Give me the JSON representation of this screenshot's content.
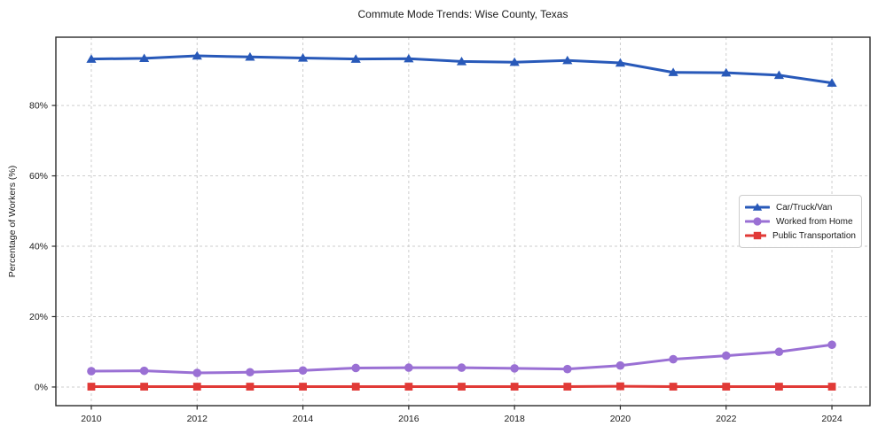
{
  "chart_data": {
    "type": "line",
    "title": "Commute Mode Trends: Wise County, Texas",
    "xlabel": "",
    "ylabel": "Percentage of Workers (%)",
    "x": [
      2010,
      2011,
      2012,
      2013,
      2014,
      2015,
      2016,
      2017,
      2018,
      2019,
      2020,
      2021,
      2022,
      2023,
      2024
    ],
    "series": [
      {
        "name": "Car/Truck/Van",
        "color": "#2859b9",
        "marker": "triangle",
        "values": [
          93.2,
          93.4,
          94.1,
          93.8,
          93.5,
          93.2,
          93.3,
          92.5,
          92.3,
          92.8,
          92.1,
          89.4,
          89.3,
          88.6,
          86.4
        ]
      },
      {
        "name": "Worked from Home",
        "color": "#9a70d4",
        "marker": "circle",
        "values": [
          4.5,
          4.6,
          4.0,
          4.2,
          4.7,
          5.4,
          5.5,
          5.5,
          5.3,
          5.1,
          6.1,
          7.9,
          8.9,
          10.0,
          12.0
        ]
      },
      {
        "name": "Public Transportation",
        "color": "#e13a37",
        "marker": "square",
        "values": [
          0.1,
          0.1,
          0.1,
          0.1,
          0.1,
          0.1,
          0.1,
          0.1,
          0.1,
          0.1,
          0.2,
          0.1,
          0.1,
          0.1,
          0.1
        ]
      }
    ],
    "xticks": {
      "values": [
        2010,
        2012,
        2014,
        2016,
        2018,
        2020,
        2022,
        2024
      ],
      "labels": [
        "2010",
        "2012",
        "2014",
        "2016",
        "2018",
        "2020",
        "2022",
        "2024"
      ]
    },
    "yticks": {
      "values": [
        0,
        20,
        40,
        60,
        80
      ],
      "labels": [
        "0%",
        "20%",
        "40%",
        "60%",
        "80%"
      ]
    },
    "xlim": [
      2009.33,
      2024.72
    ],
    "ylim": [
      -5.3,
      99.4
    ],
    "grid": true,
    "legend_position": "center right"
  },
  "colors": {
    "grid": "#cdcdcd",
    "spine": "#2a2a2a",
    "tick_text": "#1a1a1a",
    "background": "#ffffff",
    "legend_border": "#cccccc"
  }
}
